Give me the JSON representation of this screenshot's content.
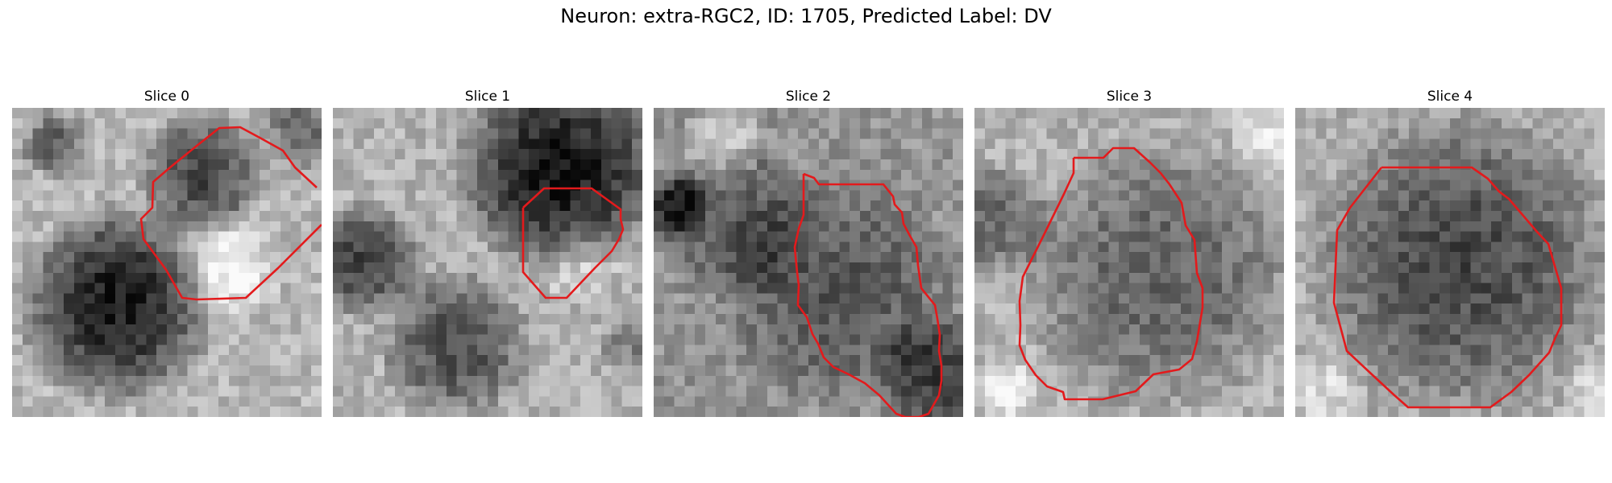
{
  "figure": {
    "title": "Neuron: extra-RGC2, ID: 1705, Predicted Label: DV"
  },
  "outline_color": "#e31a1c",
  "slices": [
    {
      "title": "Slice 0"
    },
    {
      "title": "Slice 1"
    },
    {
      "title": "Slice 2"
    },
    {
      "title": "Slice 3"
    },
    {
      "title": "Slice 4"
    }
  ]
}
